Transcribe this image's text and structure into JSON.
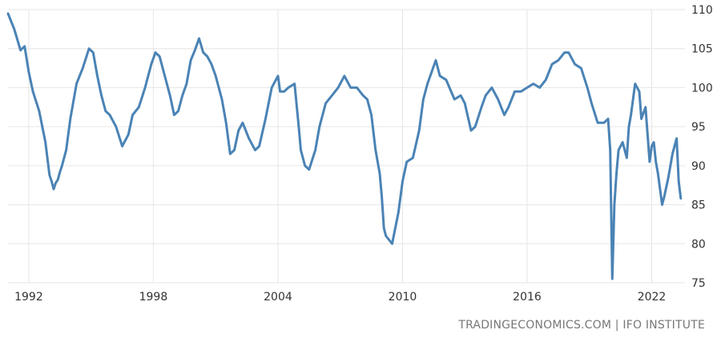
{
  "chart_data": {
    "type": "line",
    "title": "",
    "xlabel": "",
    "ylabel": "",
    "x_ticks": [
      "1992",
      "1998",
      "2004",
      "2010",
      "2016",
      "2022"
    ],
    "y_ticks": [
      75,
      80,
      85,
      90,
      95,
      100,
      105,
      110
    ],
    "ylim": [
      75,
      110
    ],
    "xlim": [
      1991.0,
      2023.6
    ],
    "grid": "vertical and horizontal",
    "y_axis_side": "right",
    "color": "#4a83b5",
    "series": [
      {
        "x": [
          1991.0,
          1991.3,
          1991.6,
          1991.8,
          1992.0,
          1992.2,
          1992.5,
          1992.8,
          1993.0,
          1993.1,
          1993.2,
          1993.3,
          1993.4,
          1993.5,
          1993.6,
          1993.8,
          1994.0,
          1994.3,
          1994.6,
          1994.9,
          1995.1,
          1995.3,
          1995.5,
          1995.7,
          1995.9,
          1996.2,
          1996.5,
          1996.8,
          1997.0,
          1997.3,
          1997.6,
          1997.9,
          1998.1,
          1998.3,
          1998.6,
          1998.8,
          1999.0,
          1999.2,
          1999.4,
          1999.6,
          1999.8,
          2000.0,
          2000.2,
          2000.4,
          2000.6,
          2000.8,
          2001.0,
          2001.3,
          2001.5,
          2001.7,
          2001.9,
          2002.1,
          2002.3,
          2002.6,
          2002.9,
          2003.1,
          2003.4,
          2003.7,
          2004.0,
          2004.1,
          2004.3,
          2004.5,
          2004.8,
          2005.0,
          2005.1,
          2005.3,
          2005.5,
          2005.8,
          2006.0,
          2006.3,
          2006.6,
          2006.9,
          2007.2,
          2007.5,
          2007.8,
          2008.1,
          2008.3,
          2008.5,
          2008.7,
          2008.9,
          2009.0,
          2009.1,
          2009.2,
          2009.5,
          2009.8,
          2010.0,
          2010.2,
          2010.5,
          2010.8,
          2011.0,
          2011.2,
          2011.4,
          2011.6,
          2011.8,
          2012.1,
          2012.5,
          2012.8,
          2013.0,
          2013.3,
          2013.5,
          2013.8,
          2014.0,
          2014.3,
          2014.6,
          2014.9,
          2015.1,
          2015.4,
          2015.7,
          2016.0,
          2016.3,
          2016.6,
          2016.9,
          2017.2,
          2017.5,
          2017.8,
          2018.0,
          2018.3,
          2018.6,
          2018.9,
          2019.1,
          2019.4,
          2019.7,
          2019.9,
          2020.0,
          2020.1,
          2020.2,
          2020.3,
          2020.4,
          2020.6,
          2020.8,
          2020.9,
          2021.0,
          2021.2,
          2021.4,
          2021.5,
          2021.7,
          2021.9,
          2022.0,
          2022.1,
          2022.2,
          2022.3,
          2022.5,
          2022.6,
          2022.8,
          2023.0,
          2023.2,
          2023.3,
          2023.4
        ],
        "values": [
          109.5,
          107.5,
          104.8,
          105.3,
          102.0,
          99.5,
          97.0,
          93.0,
          88.8,
          88.0,
          87.0,
          87.8,
          88.2,
          89.2,
          90.0,
          92.0,
          96.0,
          100.5,
          102.5,
          105.0,
          104.5,
          101.5,
          99.0,
          97.0,
          96.5,
          95.0,
          92.5,
          94.0,
          96.5,
          97.5,
          100.0,
          103.0,
          104.5,
          104.0,
          101.0,
          99.0,
          96.5,
          97.0,
          99.0,
          100.5,
          103.5,
          104.8,
          106.3,
          104.5,
          104.0,
          103.0,
          101.5,
          98.5,
          95.5,
          91.5,
          92.0,
          94.5,
          95.5,
          93.5,
          92.0,
          92.5,
          96.0,
          100.0,
          101.5,
          99.5,
          99.5,
          100.0,
          100.5,
          95.0,
          92.0,
          90.0,
          89.5,
          92.0,
          95.0,
          98.0,
          99.0,
          100.0,
          101.5,
          100.0,
          100.0,
          99.0,
          98.5,
          96.5,
          92.0,
          89.0,
          86.0,
          82.0,
          81.0,
          80.0,
          84.0,
          88.0,
          90.5,
          91.0,
          94.5,
          98.5,
          100.5,
          102.0,
          103.5,
          101.5,
          101.0,
          98.5,
          99.0,
          98.0,
          94.5,
          95.0,
          97.5,
          99.0,
          100.0,
          98.5,
          96.5,
          97.5,
          99.5,
          99.5,
          100.0,
          100.5,
          100.0,
          101.0,
          103.0,
          103.5,
          104.5,
          104.5,
          103.0,
          102.5,
          100.0,
          98.0,
          95.5,
          95.5,
          96.0,
          92.0,
          75.5,
          85.0,
          89.0,
          92.0,
          93.0,
          91.0,
          95.0,
          96.5,
          100.5,
          99.5,
          96.0,
          97.5,
          90.5,
          92.5,
          93.0,
          90.5,
          89.0,
          85.0,
          86.0,
          88.5,
          91.5,
          93.5,
          88.0,
          85.8
        ]
      }
    ]
  },
  "source": "TRADINGECONOMICS.COM | IFO INSTITUTE"
}
